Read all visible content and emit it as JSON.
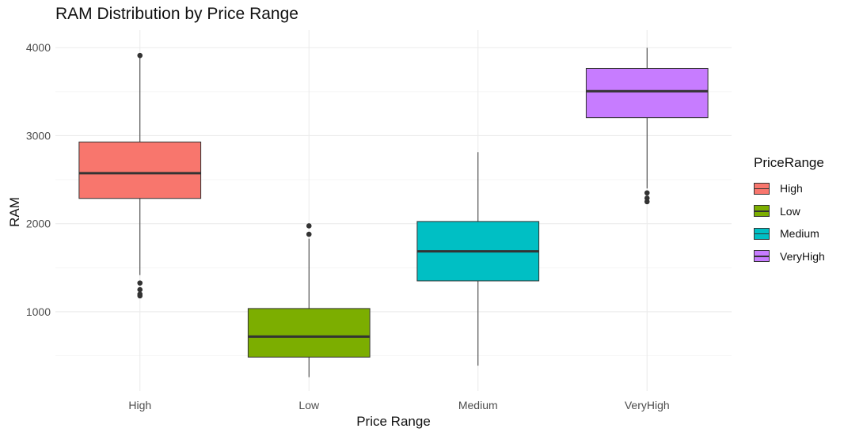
{
  "chart_data": {
    "type": "boxplot",
    "title": "RAM Distribution by Price Range",
    "xlabel": "Price Range",
    "ylabel": "RAM",
    "categories": [
      "High",
      "Low",
      "Medium",
      "VeryHigh"
    ],
    "yticks": [
      1000,
      2000,
      3000,
      4000
    ],
    "ylim": [
      100,
      4200
    ],
    "grid": true,
    "legend": {
      "title": "PriceRange",
      "position": "right",
      "entries": [
        "High",
        "Low",
        "Medium",
        "VeryHigh"
      ]
    },
    "series": [
      {
        "category": "High",
        "color": "#F8766D",
        "min": 1416,
        "q1": 2287,
        "median": 2574,
        "q3": 2928,
        "max": 3911,
        "outliers": [
          1326,
          1250,
          1200,
          1180,
          3911
        ]
      },
      {
        "category": "Low",
        "color": "#7CAE00",
        "min": 256,
        "q1": 484,
        "median": 717,
        "q3": 1036,
        "max": 1830,
        "outliers": [
          1880,
          1975
        ]
      },
      {
        "category": "Medium",
        "color": "#00BFC4",
        "min": 387,
        "q1": 1350,
        "median": 1686,
        "q3": 2025,
        "max": 2813,
        "outliers": []
      },
      {
        "category": "VeryHigh",
        "color": "#C77CFF",
        "min": 2400,
        "q1": 3205,
        "median": 3505,
        "q3": 3764,
        "max": 3998,
        "outliers": [
          2350,
          2290,
          2250
        ]
      }
    ]
  }
}
